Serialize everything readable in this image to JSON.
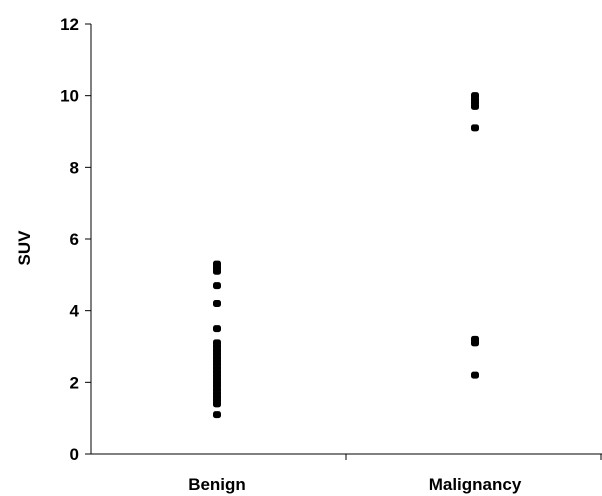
{
  "chart_data": {
    "type": "scatter",
    "title": "",
    "xlabel": "",
    "ylabel": "SUV",
    "categories": [
      "Benign",
      "Malignancy"
    ],
    "ylim": [
      0,
      12
    ],
    "yticks": [
      0,
      2,
      4,
      6,
      8,
      10,
      12
    ],
    "grid": false,
    "legend": "none",
    "colors": {
      "points": "#000000",
      "axis": "#000000",
      "background": "#ffffff"
    },
    "series": [
      {
        "category": "Benign",
        "values": [
          5.3,
          5.2,
          5.1,
          4.7,
          4.2,
          3.5,
          3.1,
          3.0,
          2.9,
          2.8,
          2.7,
          2.6,
          2.5,
          2.4,
          2.3,
          2.2,
          2.1,
          2.0,
          1.9,
          1.8,
          1.7,
          1.6,
          1.5,
          1.4,
          1.1
        ]
      },
      {
        "category": "Malignancy",
        "values": [
          10.0,
          9.9,
          9.8,
          9.7,
          9.1,
          3.2,
          3.1,
          2.2
        ]
      }
    ]
  }
}
